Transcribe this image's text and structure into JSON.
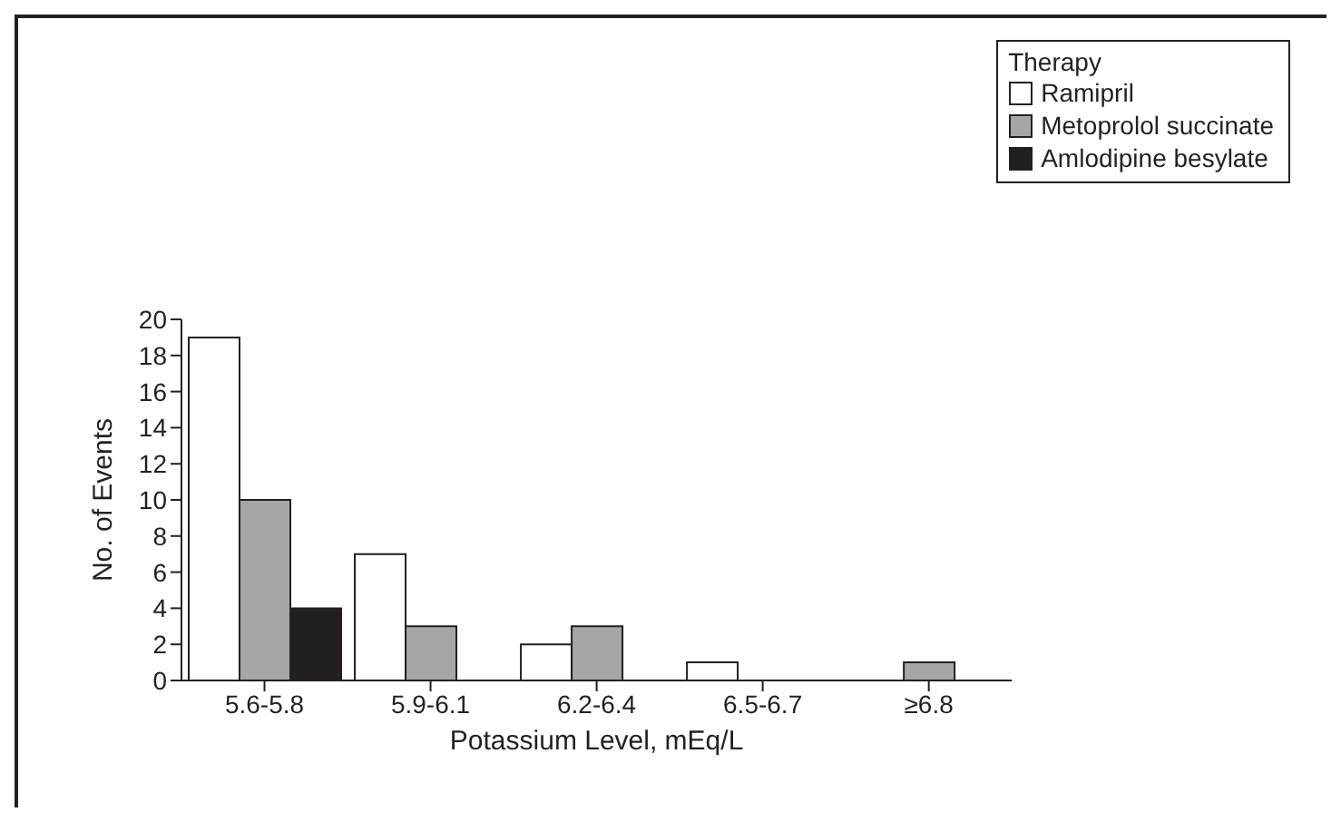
{
  "chart_data": {
    "type": "bar",
    "xlabel": "Potassium Level, mEq/L",
    "ylabel": "No. of Events",
    "legend_title": "Therapy",
    "legend": "top right",
    "grid": false,
    "categories": [
      "5.6-5.8",
      "5.9-6.1",
      "6.2-6.4",
      "6.5-6.7",
      "≥6.8"
    ],
    "ylim": [
      0,
      20
    ],
    "yticks": [
      0,
      2,
      4,
      6,
      8,
      10,
      12,
      14,
      16,
      18,
      20
    ],
    "series": [
      {
        "name": "Ramipril",
        "color": "#ffffff",
        "values": [
          19,
          7,
          2,
          1,
          0
        ]
      },
      {
        "name": "Metoprolol succinate",
        "color": "#a6a6a6",
        "values": [
          10,
          3,
          3,
          0,
          1
        ]
      },
      {
        "name": "Amlodipine besylate",
        "color": "#231f20",
        "values": [
          4,
          0,
          0,
          0,
          0
        ]
      }
    ]
  }
}
